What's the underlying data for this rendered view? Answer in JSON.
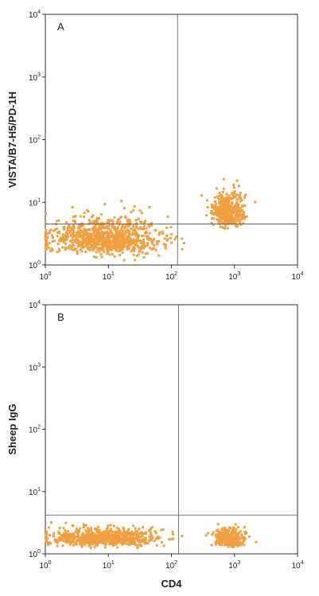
{
  "chart_data": [
    {
      "type": "scatter",
      "panel_label": "A",
      "xlabel": "",
      "ylabel": "VISTA/B7-H5/PD-1H",
      "xscale": "log",
      "yscale": "log",
      "xlim": [
        1,
        10000
      ],
      "ylim": [
        1,
        10000
      ],
      "x_ticks": [
        {
          "base": "10",
          "exp": "0"
        },
        {
          "base": "10",
          "exp": "1"
        },
        {
          "base": "10",
          "exp": "2"
        },
        {
          "base": "10",
          "exp": "3"
        },
        {
          "base": "10",
          "exp": "4"
        }
      ],
      "y_ticks": [
        {
          "base": "10",
          "exp": "0"
        },
        {
          "base": "10",
          "exp": "1"
        },
        {
          "base": "10",
          "exp": "2"
        },
        {
          "base": "10",
          "exp": "3"
        },
        {
          "base": "10",
          "exp": "4"
        }
      ],
      "quadrant_gate": {
        "x": 125,
        "y": 4.5
      },
      "point_color": "#f0a040",
      "clusters": [
        {
          "x_center": 9,
          "y_center": 2.2,
          "x_spread_decades": 0.45,
          "y_spread_decades": 0.2,
          "count": 900
        },
        {
          "x_center": 800,
          "y_center": 6,
          "x_spread_decades": 0.13,
          "y_spread_decades": 0.2,
          "count": 420
        }
      ]
    },
    {
      "type": "scatter",
      "panel_label": "B",
      "xlabel": "CD4",
      "ylabel": "Sheep IgG",
      "xscale": "log",
      "yscale": "log",
      "xlim": [
        1,
        10000
      ],
      "ylim": [
        1,
        10000
      ],
      "x_ticks": [
        {
          "base": "10",
          "exp": "0"
        },
        {
          "base": "10",
          "exp": "1"
        },
        {
          "base": "10",
          "exp": "2"
        },
        {
          "base": "10",
          "exp": "3"
        },
        {
          "base": "10",
          "exp": "4"
        }
      ],
      "y_ticks": [
        {
          "base": "10",
          "exp": "0"
        },
        {
          "base": "10",
          "exp": "1"
        },
        {
          "base": "10",
          "exp": "2"
        },
        {
          "base": "10",
          "exp": "3"
        },
        {
          "base": "10",
          "exp": "4"
        }
      ],
      "quadrant_gate": {
        "x": 130,
        "y": 4.2
      },
      "point_color": "#f0a040",
      "clusters": [
        {
          "x_center": 8,
          "y_center": 1.6,
          "x_spread_decades": 0.45,
          "y_spread_decades": 0.1,
          "count": 700
        },
        {
          "x_center": 800,
          "y_center": 1.6,
          "x_spread_decades": 0.12,
          "y_spread_decades": 0.1,
          "count": 300
        }
      ]
    }
  ]
}
